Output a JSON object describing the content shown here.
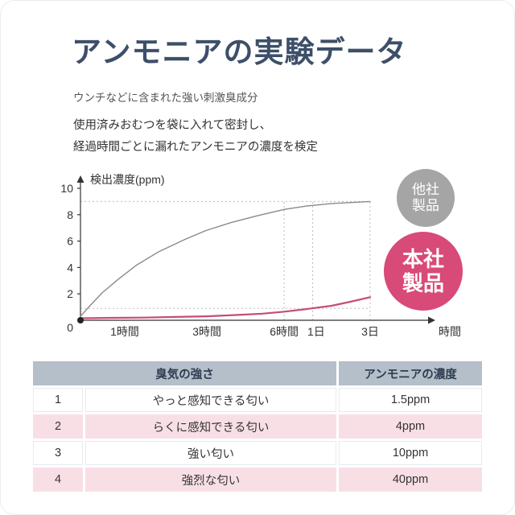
{
  "header": {
    "title_highlight": "アンモニア",
    "title_rest": "の実験データ",
    "subtitle": "ウンチなどに含まれた強い刺激臭成分",
    "description_line1": "使用済みおむつを袋に入れて密封し、",
    "description_line2": "経過時間ごとに漏れたアンモニアの濃度を検定"
  },
  "chart_data": {
    "type": "line",
    "ylabel": "検出濃度(ppm)",
    "xlabel": "時間",
    "ylim": [
      0,
      10
    ],
    "y_ticks": [
      0,
      2,
      4,
      6,
      8,
      10
    ],
    "x_ticks": [
      {
        "label": "1時間",
        "pos": 0.141
      },
      {
        "label": "3時間",
        "pos": 0.403
      },
      {
        "label": "6時間",
        "pos": 0.649
      },
      {
        "label": "1日",
        "pos": 0.751
      },
      {
        "label": "3日",
        "pos": 0.923
      }
    ],
    "series": [
      {
        "name": "他社製品",
        "color": "#8a8a8a",
        "width": 1.4,
        "points": [
          [
            0,
            0.3
          ],
          [
            0.03,
            1.1
          ],
          [
            0.07,
            2.1
          ],
          [
            0.12,
            3.1
          ],
          [
            0.18,
            4.2
          ],
          [
            0.25,
            5.2
          ],
          [
            0.33,
            6.1
          ],
          [
            0.4,
            6.8
          ],
          [
            0.48,
            7.4
          ],
          [
            0.56,
            7.9
          ],
          [
            0.65,
            8.4
          ],
          [
            0.72,
            8.65
          ],
          [
            0.8,
            8.85
          ],
          [
            0.923,
            9.0
          ]
        ]
      },
      {
        "name": "本社製品",
        "color": "#c64d73",
        "width": 2.2,
        "points": [
          [
            0,
            0.15
          ],
          [
            0.1,
            0.18
          ],
          [
            0.2,
            0.2
          ],
          [
            0.3,
            0.25
          ],
          [
            0.4,
            0.3
          ],
          [
            0.5,
            0.4
          ],
          [
            0.58,
            0.5
          ],
          [
            0.65,
            0.65
          ],
          [
            0.72,
            0.85
          ],
          [
            0.8,
            1.1
          ],
          [
            0.86,
            1.4
          ],
          [
            0.923,
            1.75
          ]
        ]
      }
    ],
    "guides": {
      "h": [
        {
          "y": 9,
          "to": 0.923
        },
        {
          "y": 0.9,
          "to": 0.923
        }
      ],
      "v": [
        {
          "pos": 0.649,
          "top": 9
        },
        {
          "pos": 0.74,
          "top": 9
        },
        {
          "pos": 0.923,
          "top": 9
        }
      ]
    },
    "labels": [
      {
        "line1": "他社",
        "line2": "製品",
        "bg": "#a5a5a5"
      },
      {
        "line1": "本社",
        "line2": "製品",
        "bg": "#d84a78"
      }
    ]
  },
  "table": {
    "headers": {
      "odor": "臭気の強さ",
      "concentration": "アンモニアの濃度"
    },
    "rows": [
      {
        "num": "1",
        "odor": "やっと感知できる匂い",
        "ppm": "1.5ppm"
      },
      {
        "num": "2",
        "odor": "らくに感知できる匂い",
        "ppm": "4ppm"
      },
      {
        "num": "3",
        "odor": "強い匂い",
        "ppm": "10ppm"
      },
      {
        "num": "4",
        "odor": "強烈な匂い",
        "ppm": "40ppm"
      }
    ]
  },
  "colors": {
    "title": "#3d4f69",
    "highlight": "#f6c8d2",
    "gray_label": "#a5a5a5",
    "pink_label": "#d84a78",
    "pink_line": "#c64d73",
    "gray_line": "#8a8a8a",
    "table_header": "#b4bfc9",
    "table_pink_row": "#f8dfe6"
  }
}
